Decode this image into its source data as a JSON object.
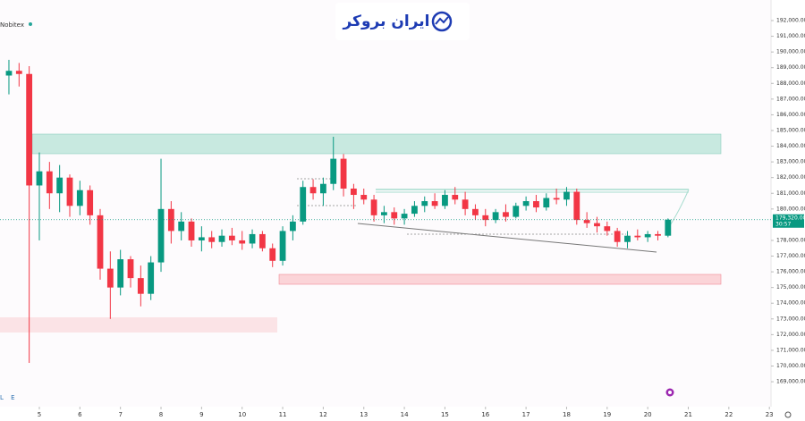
{
  "chart_data": {
    "type": "candlestick",
    "symbol": "Nobitex",
    "watermark": "ایران بروکر",
    "footer_text": "L E",
    "countdown": "30:57",
    "price_label": {
      "value": 179320,
      "label": "179,320.00"
    },
    "up_color": "#089981",
    "down_color": "#f23645",
    "xlim": [
      4.03,
      23.04
    ],
    "ylim": [
      167410,
      193310
    ],
    "xticks": [
      5,
      6,
      7,
      8,
      9,
      10,
      11,
      12,
      13,
      14,
      15,
      16,
      17,
      18,
      19,
      20,
      21,
      22,
      23
    ],
    "yticks": [
      {
        "value": 192000,
        "label": "192,000.00"
      },
      {
        "value": 191000,
        "label": "191,000.00"
      },
      {
        "value": 190000,
        "label": "190,000.00"
      },
      {
        "value": 189000,
        "label": "189,000.00"
      },
      {
        "value": 188000,
        "label": "188,000.00"
      },
      {
        "value": 187000,
        "label": "187,000.00"
      },
      {
        "value": 186000,
        "label": "186,000.00"
      },
      {
        "value": 185000,
        "label": "185,000.00"
      },
      {
        "value": 184000,
        "label": "184,000.00"
      },
      {
        "value": 183000,
        "label": "183,000.00"
      },
      {
        "value": 182000,
        "label": "182,000.00"
      },
      {
        "value": 181000,
        "label": "181,000.00"
      },
      {
        "value": 180000,
        "label": "180,000.00"
      },
      {
        "value": 178000,
        "label": "178,000.00"
      },
      {
        "value": 177000,
        "label": "177,000.00"
      },
      {
        "value": 176000,
        "label": "176,000.00"
      },
      {
        "value": 175000,
        "label": "175,000.00"
      },
      {
        "value": 174000,
        "label": "174,000.00"
      },
      {
        "value": 173000,
        "label": "173,000.00"
      },
      {
        "value": 172000,
        "label": "172,000.00"
      },
      {
        "value": 171000,
        "label": "171,000.00"
      },
      {
        "value": 170000,
        "label": "170,000.00"
      },
      {
        "value": 169000,
        "label": "169,000.00"
      }
    ],
    "x": [
      4.25,
      4.5,
      4.75,
      5,
      5.25,
      5.5,
      5.75,
      6,
      6.25,
      6.5,
      6.75,
      7,
      7.25,
      7.5,
      7.75,
      8,
      8.25,
      8.5,
      8.75,
      9,
      9.25,
      9.5,
      9.75,
      10,
      10.25,
      10.5,
      10.75,
      11,
      11.25,
      11.5,
      11.75,
      12,
      12.25,
      12.5,
      12.75,
      13,
      13.25,
      13.5,
      13.75,
      14,
      14.25,
      14.5,
      14.75,
      15,
      15.25,
      15.5,
      15.75,
      16,
      16.25,
      16.5,
      16.75,
      17,
      17.25,
      17.5,
      17.75,
      18,
      18.25,
      18.5,
      18.75,
      19,
      19.25,
      19.5,
      19.75,
      20,
      20.25,
      20.5
    ],
    "open": [
      188500,
      188800,
      188600,
      181500,
      182400,
      181000,
      182000,
      180200,
      181200,
      179600,
      176200,
      175000,
      176800,
      175600,
      174600,
      176600,
      180000,
      178600,
      179200,
      178000,
      178200,
      177900,
      178300,
      178000,
      177800,
      178400,
      177500,
      176700,
      178600,
      179200,
      181400,
      181000,
      181600,
      183200,
      181300,
      180900,
      180600,
      179600,
      179800,
      179400,
      179700,
      180200,
      180500,
      180200,
      180900,
      180600,
      180000,
      179600,
      179300,
      179800,
      179500,
      180200,
      180500,
      180100,
      180700,
      180600,
      181100,
      179300,
      179100,
      178900,
      178600,
      177900,
      178300,
      178200,
      178400,
      178300
    ],
    "high": [
      189500,
      189300,
      189100,
      183600,
      183000,
      182800,
      182200,
      181800,
      181500,
      180000,
      177300,
      177400,
      177000,
      176400,
      177000,
      183200,
      180500,
      179800,
      179400,
      178900,
      178600,
      178700,
      178800,
      178600,
      178700,
      178600,
      177800,
      178900,
      179600,
      181800,
      181900,
      182000,
      184600,
      183500,
      181600,
      181300,
      180900,
      180200,
      180100,
      180000,
      180500,
      180800,
      181000,
      181200,
      181400,
      181100,
      180300,
      180000,
      180000,
      180300,
      180400,
      180800,
      180900,
      181000,
      181300,
      181400,
      181300,
      179800,
      179500,
      179200,
      178800,
      178600,
      178700,
      178600,
      178600,
      179400
    ],
    "low": [
      187300,
      187800,
      170200,
      178000,
      180000,
      179800,
      179500,
      179600,
      179000,
      175500,
      173000,
      174500,
      175000,
      173800,
      174200,
      176000,
      177800,
      178000,
      177600,
      177300,
      177500,
      177600,
      177700,
      177400,
      177500,
      177300,
      176300,
      176400,
      178000,
      179000,
      180600,
      180200,
      181200,
      180800,
      180000,
      180300,
      179200,
      179100,
      179000,
      179000,
      179500,
      179800,
      180000,
      180000,
      180300,
      179600,
      179300,
      178900,
      179100,
      179200,
      179400,
      179900,
      179800,
      179900,
      180300,
      180200,
      179000,
      178800,
      178500,
      178300,
      177600,
      177500,
      178000,
      177900,
      178000,
      178200
    ],
    "close": [
      188800,
      188600,
      181500,
      182400,
      181000,
      182000,
      180200,
      181200,
      179600,
      176200,
      175000,
      176800,
      175600,
      174600,
      176600,
      180000,
      178600,
      179200,
      178000,
      178200,
      177900,
      178300,
      178000,
      177800,
      178400,
      177500,
      176700,
      178600,
      179200,
      181400,
      181000,
      181600,
      183200,
      181300,
      180900,
      180600,
      179600,
      179800,
      179400,
      179700,
      180200,
      180500,
      180200,
      180900,
      180600,
      180000,
      179600,
      179300,
      179800,
      179500,
      180200,
      180500,
      180100,
      180700,
      180600,
      181100,
      179300,
      179100,
      178900,
      178600,
      177900,
      178300,
      178200,
      178400,
      178300,
      179320
    ]
  }
}
